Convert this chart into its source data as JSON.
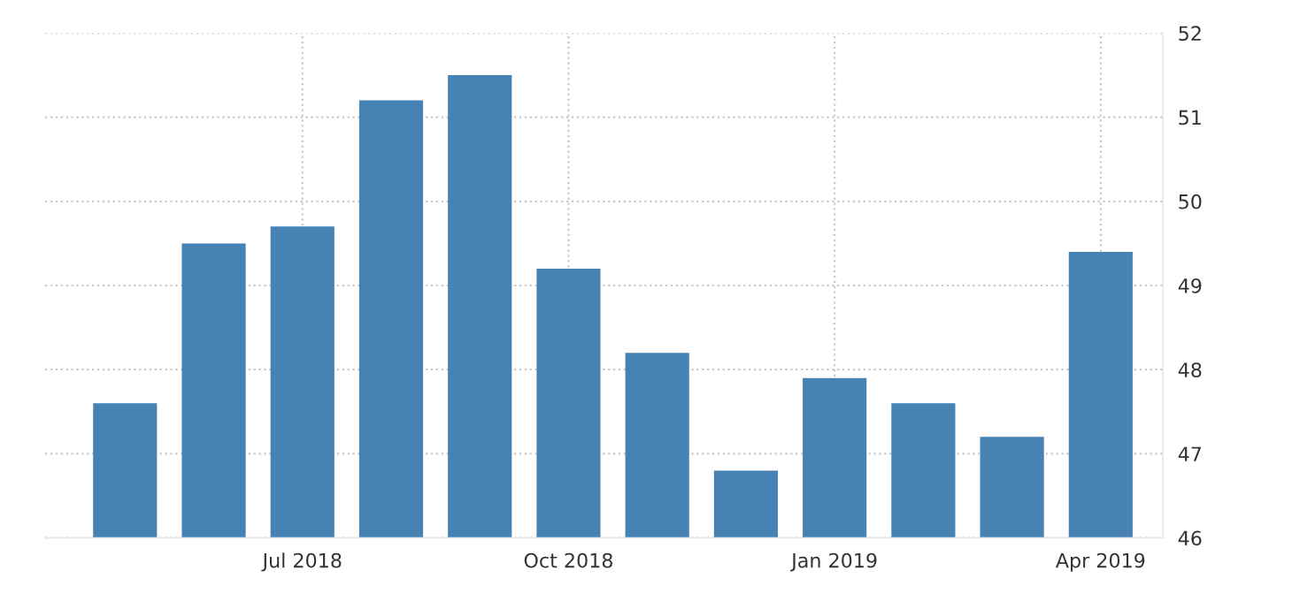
{
  "chart_data": {
    "type": "bar",
    "categories": [
      null,
      null,
      "Jul 2018",
      null,
      null,
      "Oct 2018",
      null,
      null,
      "Jan 2019",
      null,
      null,
      "Apr 2019"
    ],
    "values": [
      47.6,
      49.5,
      49.7,
      51.2,
      51.5,
      49.2,
      48.2,
      46.8,
      47.9,
      47.6,
      47.2,
      49.4
    ],
    "color": "#4682b4",
    "ylim": [
      46,
      52
    ],
    "yticks": [
      46,
      47,
      48,
      49,
      50,
      51,
      52
    ],
    "grid": true
  }
}
